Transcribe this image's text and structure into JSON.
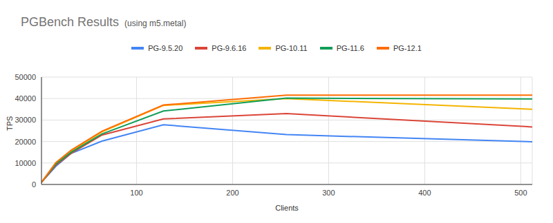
{
  "chart_data": {
    "type": "line",
    "title": "PGBench Results",
    "subtitle": "(using m5.metal)",
    "x_label": "Clients",
    "y_label": "TPS",
    "x": [
      1,
      16,
      32,
      64,
      128,
      256,
      512
    ],
    "xlim": [
      1,
      512
    ],
    "xticks": [
      100,
      200,
      300,
      400,
      500
    ],
    "ylim": [
      0,
      50000
    ],
    "yticks": [
      0,
      10000,
      20000,
      30000,
      40000,
      50000
    ],
    "grid": true,
    "legend": "top",
    "series": [
      {
        "name": "PG-9.5.20",
        "color": "#4285f4",
        "values": [
          1000,
          8500,
          14500,
          20200,
          27800,
          23200,
          19900
        ]
      },
      {
        "name": "PG-9.6.16",
        "color": "#db4437",
        "values": [
          1000,
          9000,
          14500,
          23000,
          30500,
          33000,
          26800
        ]
      },
      {
        "name": "PG-10.11",
        "color": "#f4b400",
        "values": [
          1000,
          10000,
          15500,
          24500,
          36800,
          40000,
          35000
        ]
      },
      {
        "name": "PG-11.6",
        "color": "#0f9d58",
        "values": [
          1000,
          9500,
          15000,
          23500,
          34200,
          40200,
          39800
        ]
      },
      {
        "name": "PG-12.1",
        "color": "#ff6d01",
        "values": [
          1000,
          10200,
          16000,
          24800,
          37000,
          41600,
          41600
        ]
      }
    ]
  }
}
